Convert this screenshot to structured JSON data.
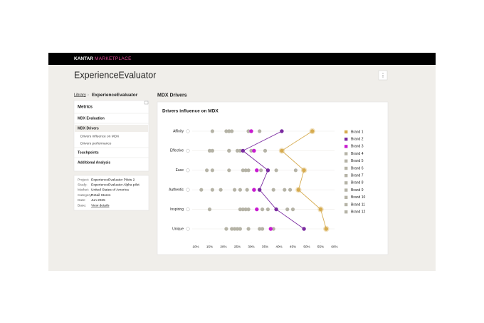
{
  "header": {
    "brand": "KANTAR",
    "product": "MARKETPLACE"
  },
  "page_title": "ExperienceEvaluator",
  "breadcrumb": {
    "root": "Library",
    "current": "ExperienceEvaluator"
  },
  "sidebar": {
    "title": "Metrics",
    "sections": [
      {
        "label": "MDX Evaluation"
      },
      {
        "label": "MDX Drivers",
        "children": [
          "Drivers influence on MDX",
          "Drivers performance"
        ]
      },
      {
        "label": "Touchpoints"
      },
      {
        "label": "Additional Analysis"
      }
    ]
  },
  "info": [
    {
      "label": "Project:",
      "value": "ExperienceEvaluator Pilots 2"
    },
    {
      "label": "Study:",
      "value": "ExperienceEvaluator Alpha pilot"
    },
    {
      "label": "Market:",
      "value": "United States of America"
    },
    {
      "label": "Category:",
      "value": "Retail Stores"
    },
    {
      "label": "Date:",
      "value": "Jun 2025"
    },
    {
      "label": "Base:",
      "value": "View details"
    }
  ],
  "section_title": "MDX Drivers",
  "chart_data": {
    "type": "dot",
    "title": "Drivers influence on MDX",
    "categories": [
      "Affinity",
      "Effective",
      "Ease",
      "Authentic",
      "Inspiring",
      "Unique"
    ],
    "xlim": [
      10,
      60
    ],
    "xticks": [
      {
        "value": 10,
        "label": "10%"
      },
      {
        "value": 15,
        "label": "15%"
      },
      {
        "value": 20,
        "label": "20%"
      },
      {
        "value": 25,
        "label": "25%"
      },
      {
        "value": 30,
        "label": "30%"
      },
      {
        "value": 35,
        "label": "35%"
      },
      {
        "value": 40,
        "label": "40%"
      },
      {
        "value": 45,
        "label": "45%"
      },
      {
        "value": 50,
        "label": "50%"
      },
      {
        "value": 55,
        "label": "55%"
      },
      {
        "value": 60,
        "label": "60%"
      }
    ],
    "series": [
      {
        "name": "Brand 1",
        "color": "#d6ab4f",
        "connect": true,
        "values": [
          52,
          41,
          49,
          47,
          55,
          57
        ]
      },
      {
        "name": "Brand 2",
        "color": "#7a2aa0",
        "connect": true,
        "values": [
          41,
          27,
          36,
          33,
          39,
          49
        ]
      },
      {
        "name": "Brand 3",
        "color": "#c81ad0",
        "values": [
          30,
          31,
          32,
          31,
          32,
          37
        ]
      },
      {
        "name": "Brand 4",
        "color": "#b5b3a6",
        "values": [
          16,
          15,
          14,
          12,
          15,
          21
        ]
      },
      {
        "name": "Brand 5",
        "color": "#b5b3a6",
        "values": [
          21,
          16,
          16,
          16,
          26,
          23
        ]
      },
      {
        "name": "Brand 6",
        "color": "#b5b3a6",
        "values": [
          22,
          22,
          22,
          19,
          27,
          24
        ]
      },
      {
        "name": "Brand 7",
        "color": "#b5b3a6",
        "values": [
          23,
          22,
          27,
          24,
          28,
          25
        ]
      },
      {
        "name": "Brand 8",
        "color": "#b5b3a6",
        "values": [
          22,
          25,
          28,
          26,
          29,
          26
        ]
      },
      {
        "name": "Brand 9",
        "color": "#b5b3a6",
        "values": [
          29,
          26,
          29,
          28.5,
          34,
          29
        ]
      },
      {
        "name": "Brand 10",
        "color": "#b5b3a6",
        "values": [
          30,
          30,
          33.5,
          38,
          36,
          33
        ]
      },
      {
        "name": "Brand 11",
        "color": "#b5b3a6",
        "values": [
          29,
          31,
          39,
          42,
          43,
          34
        ]
      },
      {
        "name": "Brand 12",
        "color": "#b5b3a6",
        "values": [
          33,
          35,
          46,
          44,
          45,
          38
        ]
      }
    ]
  }
}
